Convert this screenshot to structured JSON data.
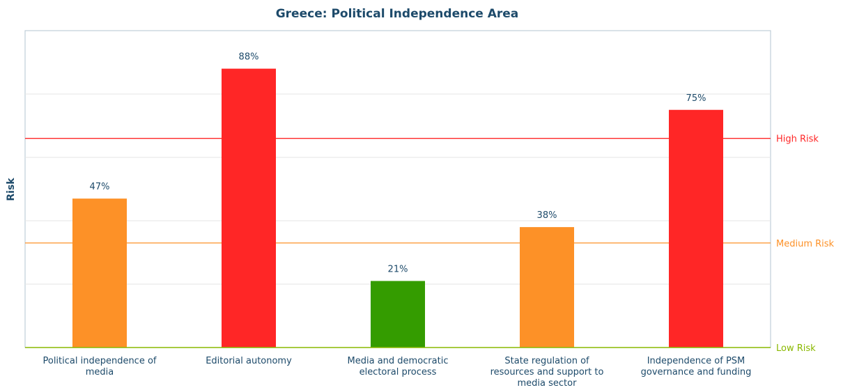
{
  "chart_data": {
    "type": "bar",
    "title": "Greece: Political Independence Area",
    "ylabel": "Risk",
    "ylim": [
      0,
      100
    ],
    "grid": true,
    "categories": [
      [
        "Political independence of",
        "media"
      ],
      [
        "Editorial autonomy"
      ],
      [
        "Media and democratic",
        "electoral process"
      ],
      [
        "State regulation of",
        "resources and support to",
        "media sector"
      ],
      [
        "Independence of PSM",
        "governance and funding"
      ]
    ],
    "values": [
      47,
      88,
      21,
      38,
      75
    ],
    "value_labels": [
      "47%",
      "88%",
      "21%",
      "38%",
      "75%"
    ],
    "bar_colors": [
      "#fd9127",
      "#ff2626",
      "#349c00",
      "#fd9127",
      "#ff2626"
    ],
    "thresholds": [
      {
        "label": "High Risk",
        "value": 66,
        "color": "#ff2626"
      },
      {
        "label": "Medium Risk",
        "value": 33,
        "color": "#fd9127"
      },
      {
        "label": "Low Risk",
        "value": 0,
        "color": "#8ab800"
      }
    ]
  }
}
